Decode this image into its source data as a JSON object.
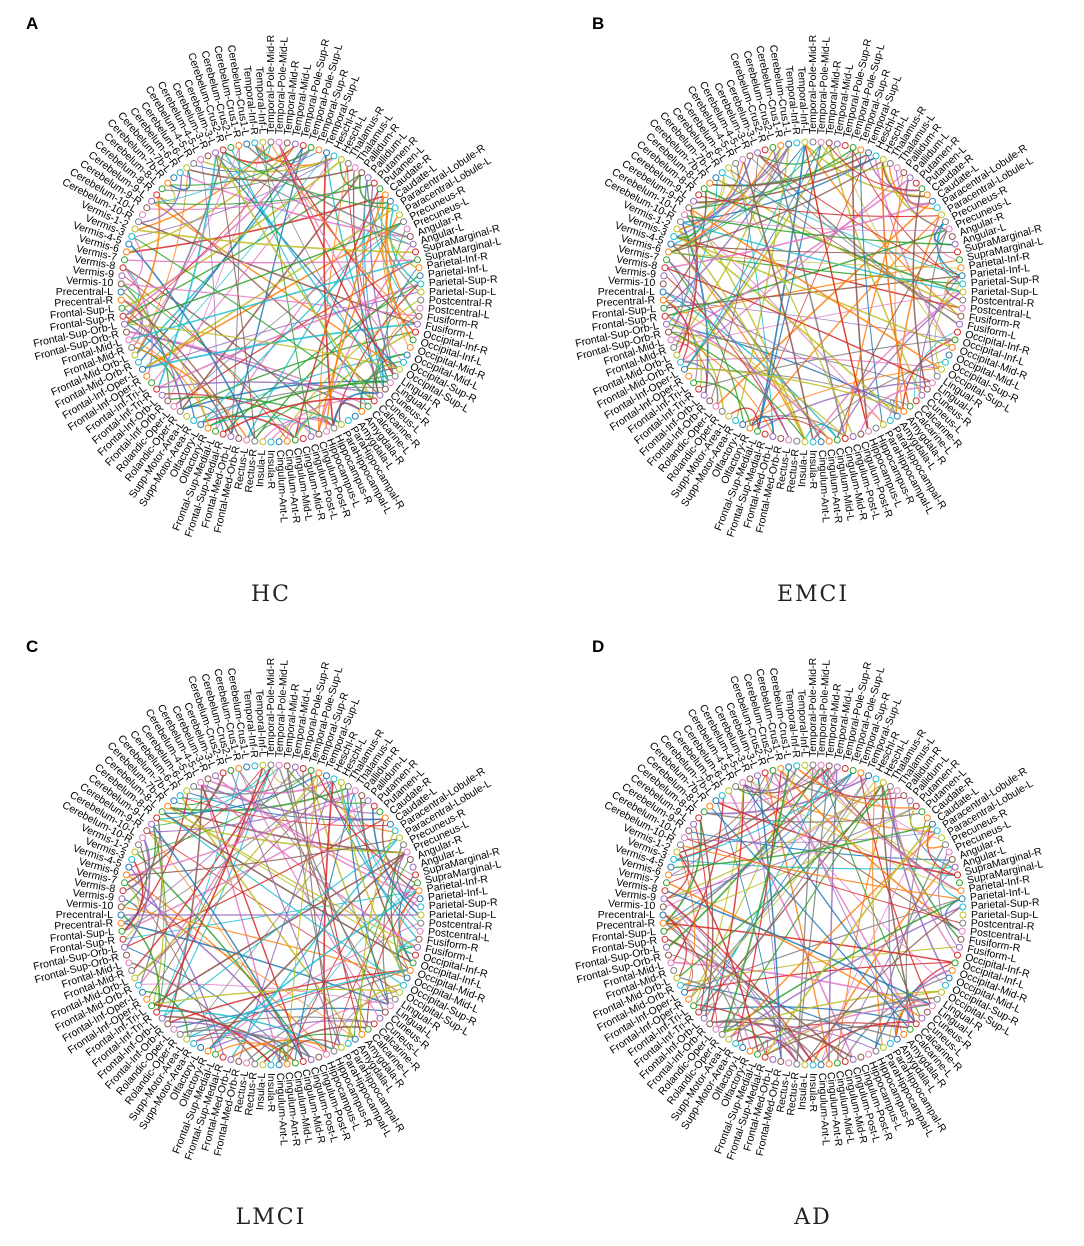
{
  "regions": [
    "Precentral-L",
    "Precentral-R",
    "Frontal-Sup-L",
    "Frontal-Sup-R",
    "Frontal-Sup-Orb-L",
    "Frontal-Sup-Orb-R",
    "Frontal-Mid-L",
    "Frontal-Mid-R",
    "Frontal-Mid-Orb-L",
    "Frontal-Mid-Orb-R",
    "Frontal-Inf-Oper-L",
    "Frontal-Inf-Oper-R",
    "Frontal-Inf-Tri-L",
    "Frontal-Inf-Tri-R",
    "Frontal-Inf-Orb-L",
    "Frontal-Inf-Orb-R",
    "Rolandic-Oper-L",
    "Rolandic-Oper-R",
    "Supp-Motor-Area-L",
    "Supp-Motor-Area-R",
    "Olfactory-L",
    "Olfactory-R",
    "Frontal-Sup-Medial-L",
    "Frontal-Sup-Medial-R",
    "Frontal-Med-Orb-L",
    "Frontal-Med-Orb-R",
    "Rectus-L",
    "Rectus-R",
    "Insula-L",
    "Insula-R",
    "Cingulum-Ant-L",
    "Cingulum-Ant-R",
    "Cingulum-Mid-L",
    "Cingulum-Mid-R",
    "Cingulum-Post-L",
    "Cingulum-Post-R",
    "Hippocampus-L",
    "Hippocampus-R",
    "ParaHippocampal-L",
    "ParaHippocampal-R",
    "Amygdala-L",
    "Amygdala-R",
    "Calcarine-L",
    "Calcarine-R",
    "Cuneus-L",
    "Cuneus-R",
    "Lingual-L",
    "Lingual-R",
    "Occipital-Sup-L",
    "Occipital-Sup-R",
    "Occipital-Mid-L",
    "Occipital-Mid-R",
    "Occipital-Inf-L",
    "Occipital-Inf-R",
    "Fusiform-L",
    "Fusiform-R",
    "Postcentral-L",
    "Postcentral-R",
    "Parietal-Sup-L",
    "Parietal-Sup-R",
    "Parietal-Inf-L",
    "Parietal-Inf-R",
    "SupraMarginal-L",
    "SupraMarginal-R",
    "Angular-L",
    "Angular-R",
    "Precuneus-L",
    "Precuneus-R",
    "Paracentral-Lobule-L",
    "Paracentral-Lobule-R",
    "Caudate-L",
    "Caudate-R",
    "Putamen-L",
    "Putamen-R",
    "Pallidum-L",
    "Pallidum-R",
    "Thalamus-L",
    "Thalamus-R",
    "Heschl-L",
    "Heschl-R",
    "Temporal-Sup-L",
    "Temporal-Sup-R",
    "Temporal-Pole-Sup-L",
    "Temporal-Pole-Sup-R",
    "Temporal-Mid-L",
    "Temporal-Mid-R",
    "Temporal-Pole-Mid-L",
    "Temporal-Pole-Mid-R",
    "Temporal-Inf-L",
    "Temporal-Inf-R",
    "Cerebelum-Crus1-L",
    "Cerebelum-Crus1-R",
    "Cerebelum-Crus2-L",
    "Cerebelum-Crus2-R",
    "Cerebelum-3-L",
    "Cerebelum-3-R",
    "Cerebelum-4-5-L",
    "Cerebelum-4-5-R",
    "Cerebelum-6-L",
    "Cerebelum-6-R",
    "Cerebelum-7b-L",
    "Cerebelum-7b-R",
    "Cerebelum-8-L",
    "Cerebelum-8-R",
    "Cerebelum-9-L",
    "Cerebelum-9-R",
    "Cerebelum-10-L",
    "Cerebelum-10-R",
    "Vermis-1-2",
    "Vermis-3",
    "Vermis-4-5",
    "Vermis-6",
    "Vermis-7",
    "Vermis-8",
    "Vermis-9",
    "Vermis-10"
  ],
  "colors": [
    "#1f77b4",
    "#ff7f0e",
    "#2ca02c",
    "#d62728",
    "#9467bd",
    "#8c564b",
    "#e377c2",
    "#7f7f7f",
    "#bcbd22",
    "#17becf"
  ],
  "panels": [
    {
      "letter": "A",
      "group": "HC",
      "seed": 11
    },
    {
      "letter": "B",
      "group": "EMCI",
      "seed": 29
    },
    {
      "letter": "C",
      "group": "LMCI",
      "seed": 47
    },
    {
      "letter": "D",
      "group": "AD",
      "seed": 83
    }
  ]
}
